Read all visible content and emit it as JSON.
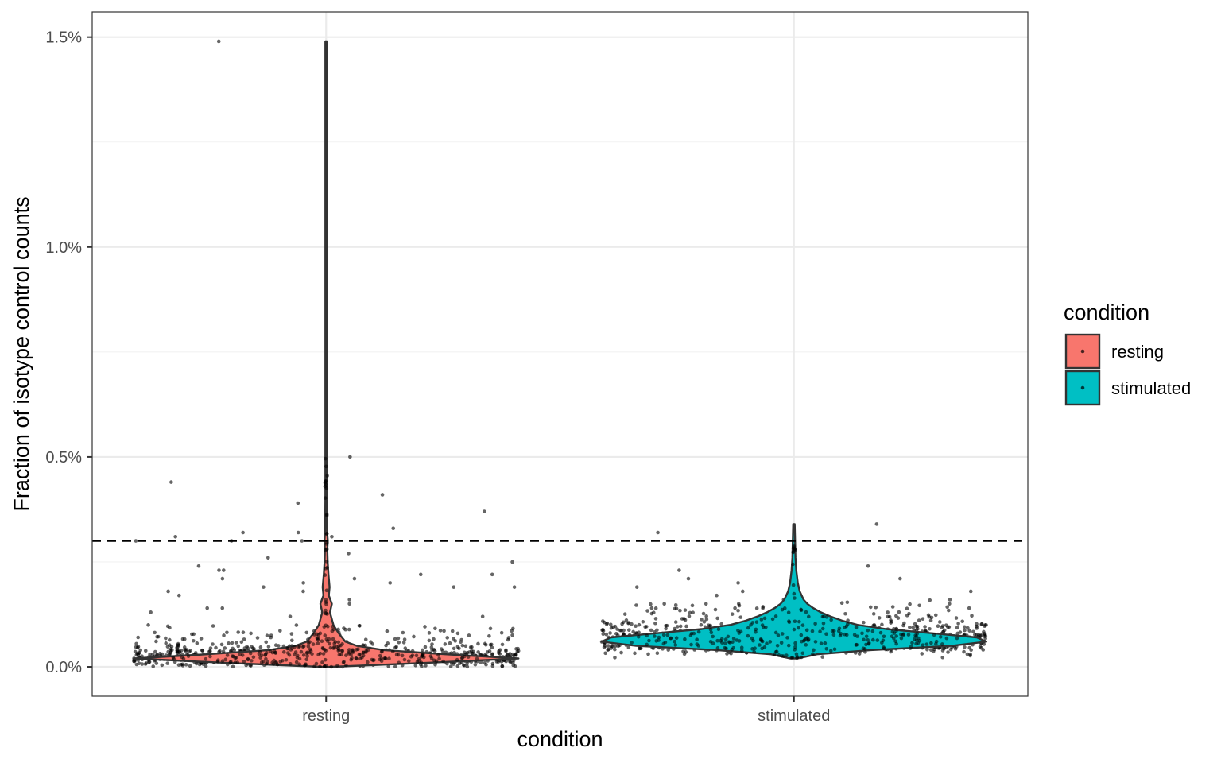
{
  "chart_data": {
    "type": "violin",
    "xlabel": "condition",
    "ylabel": "Fraction of isotype control counts",
    "categories": [
      "resting",
      "stimulated"
    ],
    "ylim": [
      -0.0007,
      0.0156
    ],
    "yticks": [
      0.0,
      0.005,
      0.01,
      0.015
    ],
    "ytick_labels": [
      "0.0%",
      "0.5%",
      "1.0%",
      "1.5%"
    ],
    "threshold": 0.003,
    "threshold_style": "dashed",
    "grid": true,
    "legend": {
      "title": "condition",
      "placement": "right",
      "entries": [
        {
          "label": "resting",
          "color": "#F8766D"
        },
        {
          "label": "stimulated",
          "color": "#00BFC4"
        }
      ]
    },
    "series": [
      {
        "name": "resting",
        "color": "#F8766D",
        "n_points": 900,
        "median": 0.0002,
        "max": 0.0149,
        "violin_profile": [
          [
            0.0,
            0.03
          ],
          [
            0.0001,
            0.55
          ],
          [
            0.0002,
            1.0
          ],
          [
            0.0003,
            0.62
          ],
          [
            0.0004,
            0.3
          ],
          [
            0.0005,
            0.16
          ],
          [
            0.0006,
            0.1
          ],
          [
            0.0008,
            0.065
          ],
          [
            0.001,
            0.038
          ],
          [
            0.0013,
            0.02
          ],
          [
            0.0015,
            0.03
          ],
          [
            0.0017,
            0.014
          ],
          [
            0.0019,
            0.018
          ],
          [
            0.0022,
            0.012
          ],
          [
            0.0025,
            0.008
          ],
          [
            0.0028,
            0.006
          ],
          [
            0.003,
            0.009
          ],
          [
            0.0032,
            0.005
          ],
          [
            0.004,
            0.003
          ],
          [
            0.005,
            0.004
          ],
          [
            0.006,
            0.003
          ],
          [
            0.01,
            0.003
          ],
          [
            0.0149,
            0.003
          ]
        ],
        "outliers": [
          0.0149,
          0.005,
          0.0044,
          0.0041,
          0.0039,
          0.0037,
          0.0033,
          0.0032,
          0.0032,
          0.0031,
          0.0031,
          0.003,
          0.003,
          0.003,
          0.0027,
          0.0026,
          0.0025,
          0.0024,
          0.0023,
          0.0023,
          0.0022,
          0.0022,
          0.0021,
          0.0021,
          0.002,
          0.002,
          0.0019,
          0.0019,
          0.0019,
          0.0018,
          0.0018,
          0.0017,
          0.0016,
          0.0015,
          0.0014,
          0.0014,
          0.0013,
          0.0013,
          0.0012,
          0.0012
        ]
      },
      {
        "name": "stimulated",
        "color": "#00BFC4",
        "n_points": 900,
        "median": 0.0007,
        "max": 0.0034,
        "violin_profile": [
          [
            0.0002,
            0.02
          ],
          [
            0.0003,
            0.12
          ],
          [
            0.0004,
            0.4
          ],
          [
            0.0005,
            0.82
          ],
          [
            0.0006,
            1.0
          ],
          [
            0.0007,
            0.95
          ],
          [
            0.0008,
            0.72
          ],
          [
            0.0009,
            0.48
          ],
          [
            0.001,
            0.33
          ],
          [
            0.0011,
            0.25
          ],
          [
            0.0012,
            0.19
          ],
          [
            0.0013,
            0.14
          ],
          [
            0.0014,
            0.1
          ],
          [
            0.0015,
            0.07
          ],
          [
            0.0016,
            0.05
          ],
          [
            0.0018,
            0.03
          ],
          [
            0.002,
            0.02
          ],
          [
            0.0023,
            0.012
          ],
          [
            0.0026,
            0.008
          ],
          [
            0.003,
            0.006
          ],
          [
            0.0034,
            0.004
          ]
        ],
        "outliers": [
          0.0034,
          0.0032,
          0.0024,
          0.0023,
          0.0021,
          0.0021,
          0.002,
          0.0019,
          0.0018,
          0.0018,
          0.0017,
          0.0017,
          0.0016,
          0.0016,
          0.0015,
          0.0015,
          0.0015,
          0.0014,
          0.0014,
          0.0014
        ]
      }
    ]
  }
}
